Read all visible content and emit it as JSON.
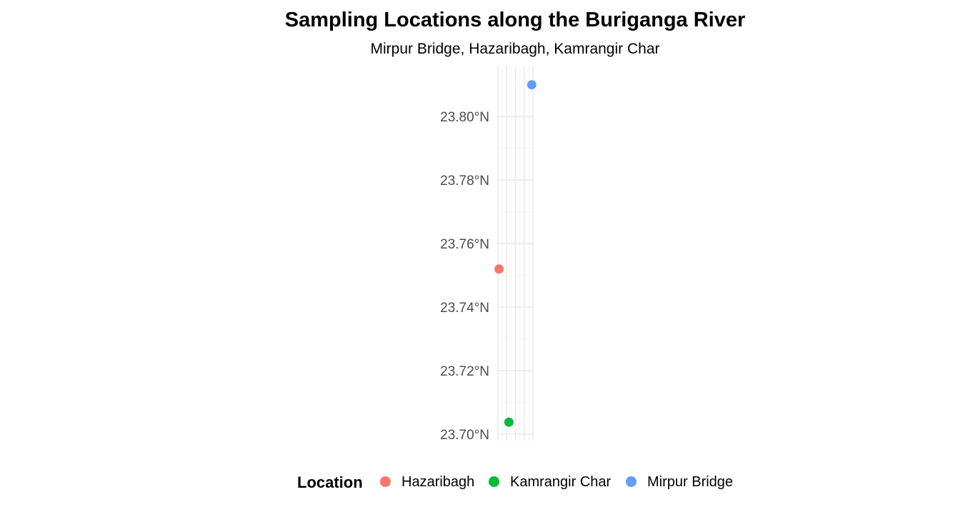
{
  "chart_data": {
    "type": "scatter",
    "title": "Sampling Locations along the Buriganga River",
    "subtitle": "Mirpur Bridge, Hazaribagh, Kamrangir Char",
    "xlabel": "",
    "ylabel": "",
    "y_ticks": [
      "23.70°N",
      "23.72°N",
      "23.74°N",
      "23.76°N",
      "23.78°N",
      "23.80°N"
    ],
    "y_tick_values": [
      23.7,
      23.72,
      23.74,
      23.76,
      23.78,
      23.8
    ],
    "ylim": [
      23.698,
      23.816
    ],
    "xlim": [
      90.3592,
      90.3708
    ],
    "x_label_visible": false,
    "grid": true,
    "legend_position": "bottom",
    "legend": {
      "title": "Location",
      "entries": [
        {
          "label": "Hazaribagh",
          "color": "#F8766D"
        },
        {
          "label": "Kamrangir Char",
          "color": "#00BA38"
        },
        {
          "label": "Mirpur Bridge",
          "color": "#619CFF"
        }
      ]
    },
    "points": [
      {
        "name": "Hazaribagh",
        "lon": 90.36,
        "lat": 23.752,
        "color": "#F8766D"
      },
      {
        "name": "Kamrangir Char",
        "lon": 90.363,
        "lat": 23.7038,
        "color": "#00BA38"
      },
      {
        "name": "Mirpur Bridge",
        "lon": 90.37,
        "lat": 23.81,
        "color": "#619CFF"
      }
    ]
  }
}
